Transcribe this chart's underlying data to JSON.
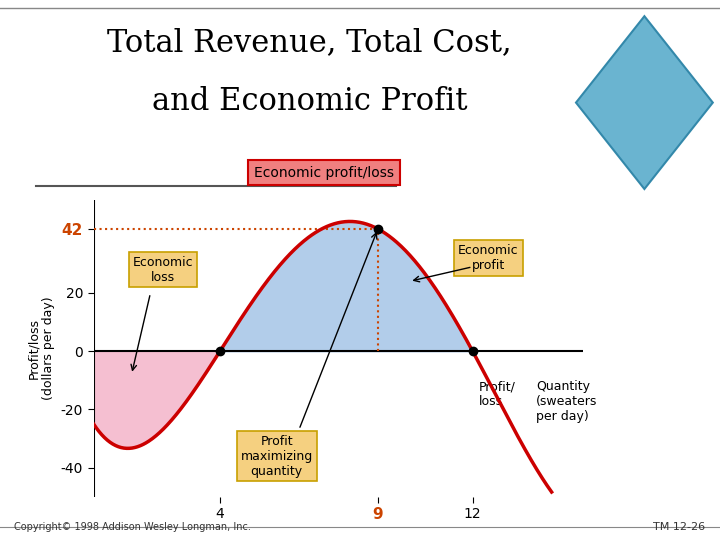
{
  "title_line1": "Total Revenue, Total Cost,",
  "title_line2": "and Economic Profit",
  "title_fontsize": 22,
  "background_color": "#ffffff",
  "legend_label": "Economic profit/loss",
  "ylabel": "Profit/loss\n(dollars per day)",
  "xlabel_line1": "Quantity",
  "xlabel_line2": "(sweaters",
  "xlabel_line3": "per day)",
  "ytick_vals": [
    42,
    20,
    0,
    -20,
    -40
  ],
  "xtick_vals": [
    4,
    9,
    12
  ],
  "xlim": [
    0,
    15.5
  ],
  "ylim": [
    -50,
    52
  ],
  "curve_color": "#cc0000",
  "fill_positive_color": "#aac8e8",
  "fill_negative_color": "#f4b8cc",
  "dotted_line_color": "#cc4400",
  "annotation_box_color": "#f5d080",
  "annotation_box_edge": "#c8a000",
  "key_points": [
    [
      4,
      0
    ],
    [
      9,
      42
    ],
    [
      12,
      0
    ]
  ],
  "curve_pts_x": [
    0,
    4,
    9,
    12,
    15
  ],
  "curve_pts_y": [
    -25,
    0,
    42,
    0,
    -55
  ],
  "copyright_text": "Copyright© 1998 Addison Wesley Longman, Inc.",
  "tm_text": "TM 12-26"
}
